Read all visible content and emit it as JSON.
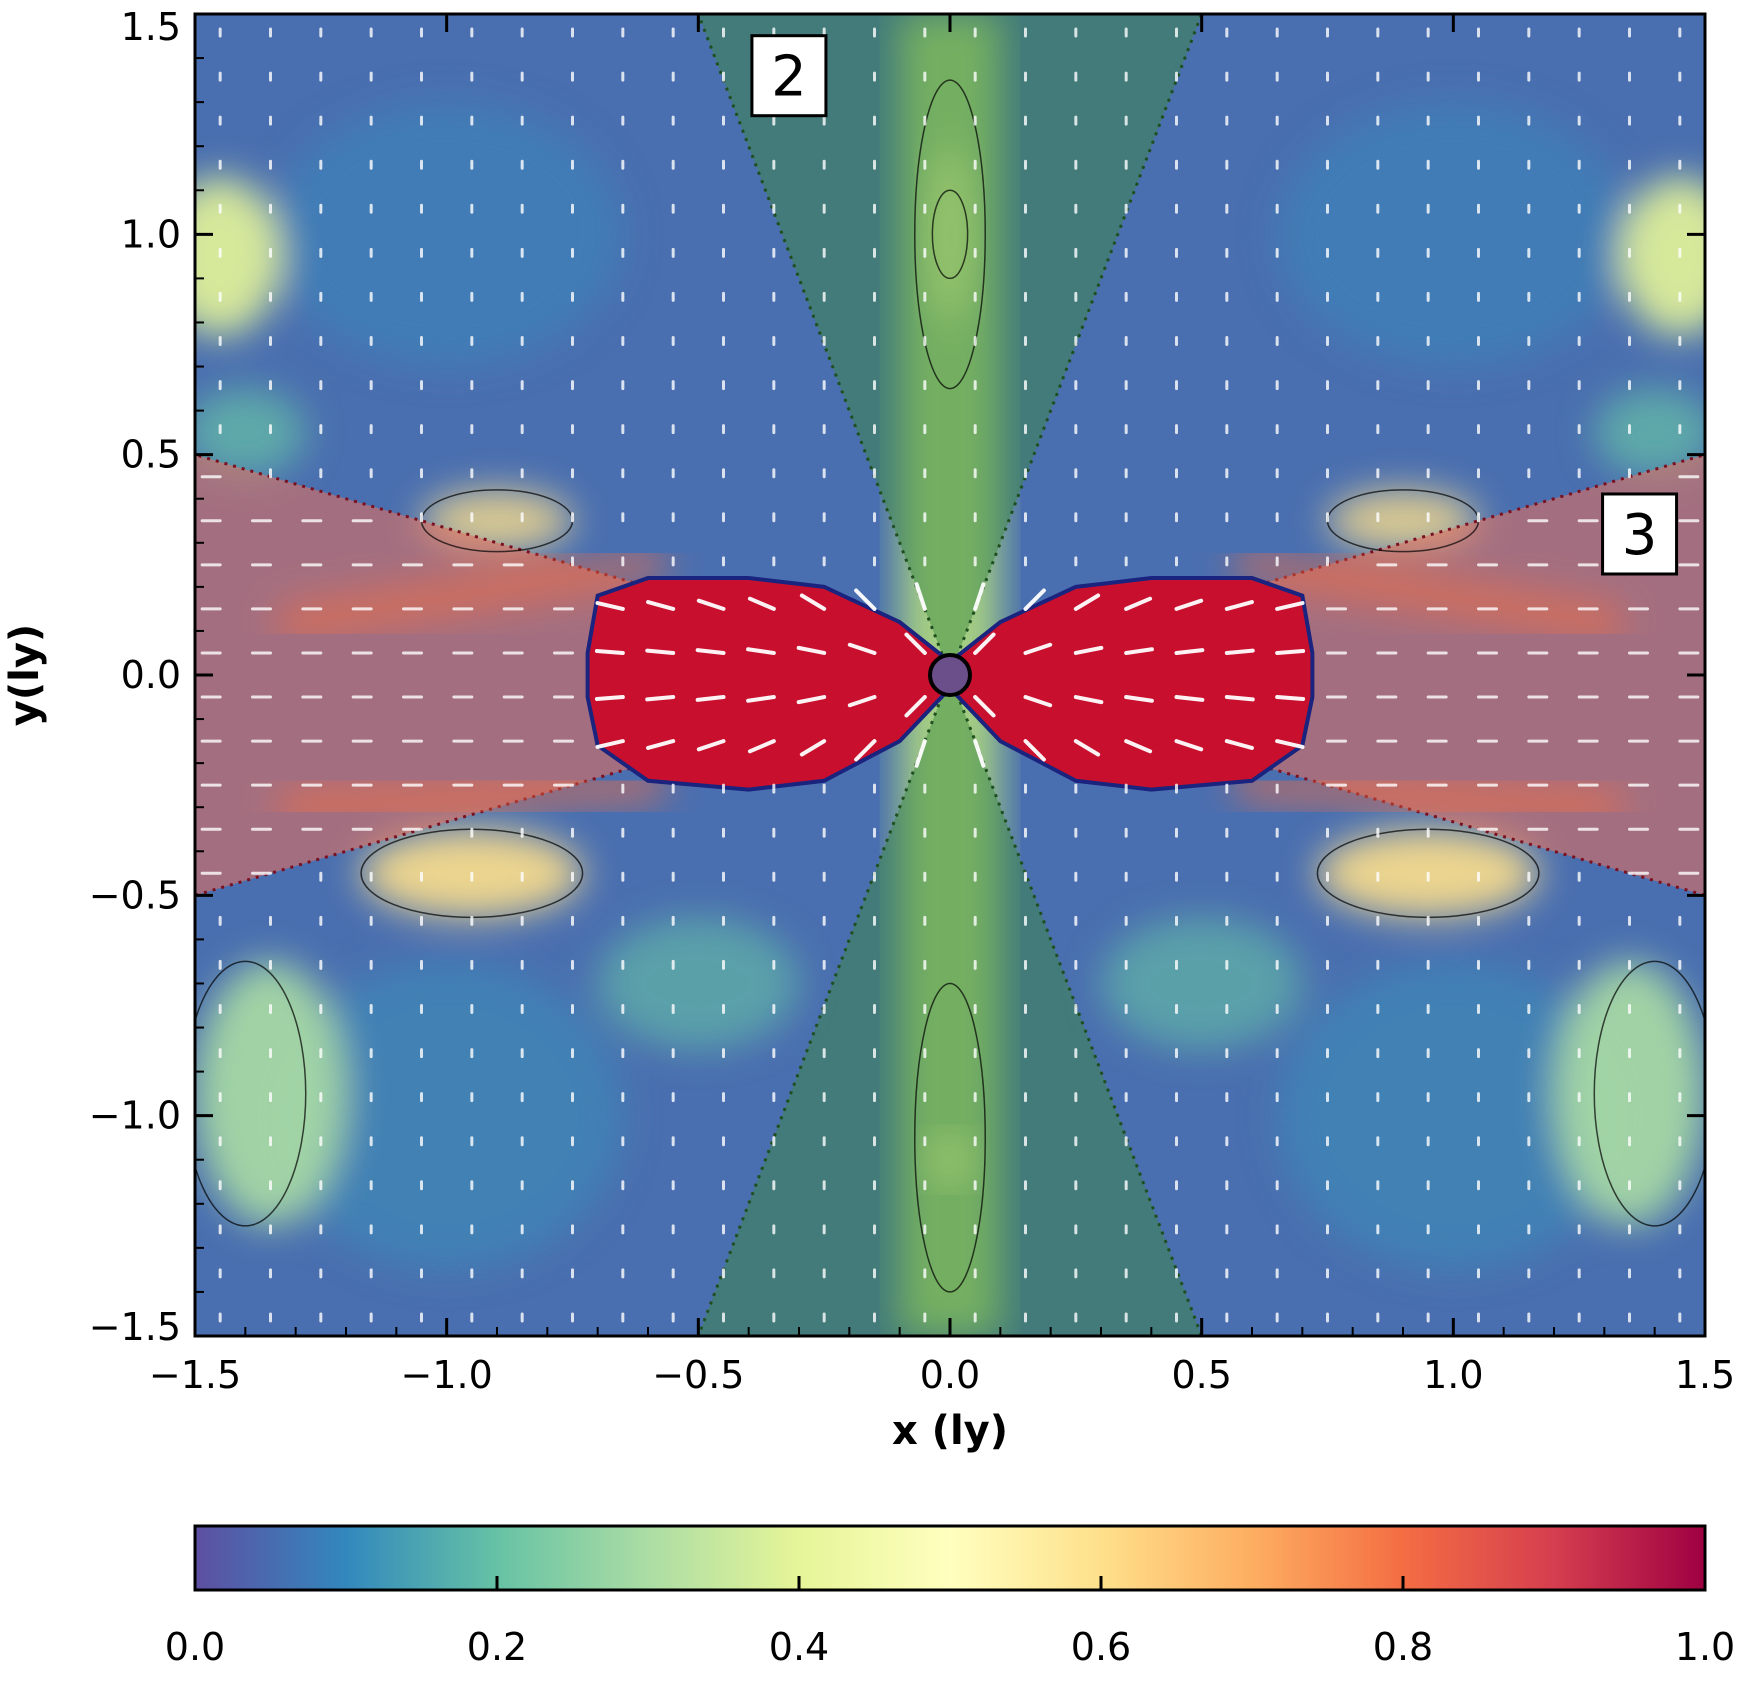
{
  "chart_data": {
    "type": "heatmap",
    "title": "",
    "xlabel": "x (ly)",
    "ylabel": "y(ly)",
    "xlim": [
      -1.5,
      1.5
    ],
    "ylim": [
      -1.5,
      1.5
    ],
    "x_ticks": [
      {
        "value": -1.5,
        "label": "−1.5"
      },
      {
        "value": -1.0,
        "label": "−1.0"
      },
      {
        "value": -0.5,
        "label": "−0.5"
      },
      {
        "value": 0.0,
        "label": "0.0"
      },
      {
        "value": 0.5,
        "label": "0.5"
      },
      {
        "value": 1.0,
        "label": "1.0"
      },
      {
        "value": 1.5,
        "label": "1.5"
      }
    ],
    "y_ticks": [
      {
        "value": 1.5,
        "label": "1.5"
      },
      {
        "value": 1.0,
        "label": "1.0"
      },
      {
        "value": 0.5,
        "label": "0.5"
      },
      {
        "value": 0.0,
        "label": "0.0"
      },
      {
        "value": -0.5,
        "label": "−0.5"
      },
      {
        "value": -1.0,
        "label": "−1.0"
      },
      {
        "value": -1.5,
        "label": "−1.5"
      }
    ],
    "colorbar": {
      "range": [
        0.0,
        1.0
      ],
      "ticks": [
        {
          "value": 0.0,
          "label": "0.0"
        },
        {
          "value": 0.2,
          "label": "0.2"
        },
        {
          "value": 0.4,
          "label": "0.4"
        },
        {
          "value": 0.6,
          "label": "0.6"
        },
        {
          "value": 0.8,
          "label": "0.8"
        },
        {
          "value": 1.0,
          "label": "1.0"
        }
      ],
      "colors": [
        "#5e4fa2",
        "#3288bd",
        "#66c2a5",
        "#abdda4",
        "#e6f598",
        "#ffffbf",
        "#fee08b",
        "#fdae61",
        "#f46d43",
        "#d53e4f",
        "#9e0142"
      ]
    },
    "regions": [
      {
        "label": "2",
        "description_color": "#3a8a3a",
        "polygons": [
          [
            [
              -0.5,
              1.5
            ],
            [
              0.5,
              1.5
            ],
            [
              0.0,
              0.0
            ]
          ],
          [
            [
              -0.5,
              -1.5
            ],
            [
              0.5,
              -1.5
            ],
            [
              0.0,
              0.0
            ]
          ]
        ],
        "label_position": [
          -0.32,
          1.36
        ]
      },
      {
        "label": "3",
        "description_color": "#c0392b",
        "polygons": [
          [
            [
              -1.5,
              0.5
            ],
            [
              -1.5,
              -0.5
            ],
            [
              0.0,
              0.0
            ]
          ],
          [
            [
              1.5,
              0.5
            ],
            [
              1.5,
              -0.5
            ],
            [
              0.0,
              0.0
            ]
          ]
        ],
        "label_position": [
          1.37,
          0.32
        ]
      }
    ],
    "lobe": {
      "color": "#c8102e",
      "outline_color": "#1a237e",
      "points": [
        [
          0.0,
          0.03
        ],
        [
          0.1,
          0.12
        ],
        [
          0.25,
          0.2
        ],
        [
          0.4,
          0.22
        ],
        [
          0.6,
          0.22
        ],
        [
          0.7,
          0.18
        ],
        [
          0.72,
          0.05
        ],
        [
          0.72,
          -0.05
        ],
        [
          0.7,
          -0.16
        ],
        [
          0.6,
          -0.24
        ],
        [
          0.4,
          -0.26
        ],
        [
          0.25,
          -0.24
        ],
        [
          0.1,
          -0.15
        ],
        [
          0.0,
          -0.03
        ]
      ]
    },
    "grid": false,
    "legend": "none"
  }
}
